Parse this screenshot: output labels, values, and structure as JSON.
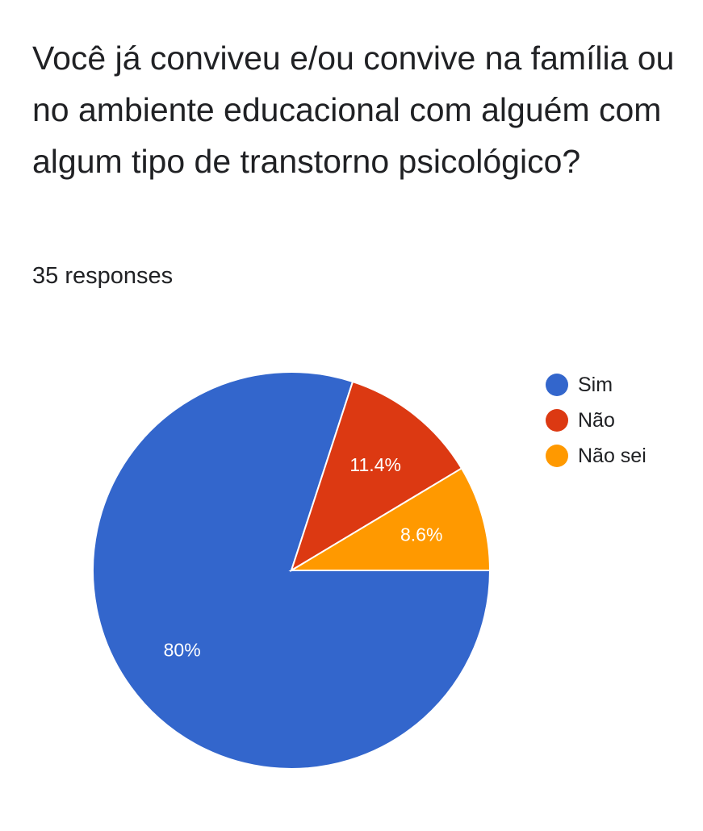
{
  "question": {
    "title": "Você já conviveu e/ou convive na família ou no ambiente educacional com alguém com algum tipo de transtorno psicológico?",
    "response_count": "35 responses"
  },
  "chart_data": {
    "type": "pie",
    "title": "Você já conviveu e/ou convive na família ou no ambiente educacional com alguém com algum tipo de transtorno psicológico?",
    "total_responses": 35,
    "legend_position": "right",
    "slices": [
      {
        "label": "Sim",
        "value": 80,
        "value_label": "80%",
        "color": "#3366cc"
      },
      {
        "label": "Não",
        "value": 11.4,
        "value_label": "11.4%",
        "color": "#dc3912"
      },
      {
        "label": "Não sei",
        "value": 8.6,
        "value_label": "8.6%",
        "color": "#ff9900"
      }
    ]
  }
}
